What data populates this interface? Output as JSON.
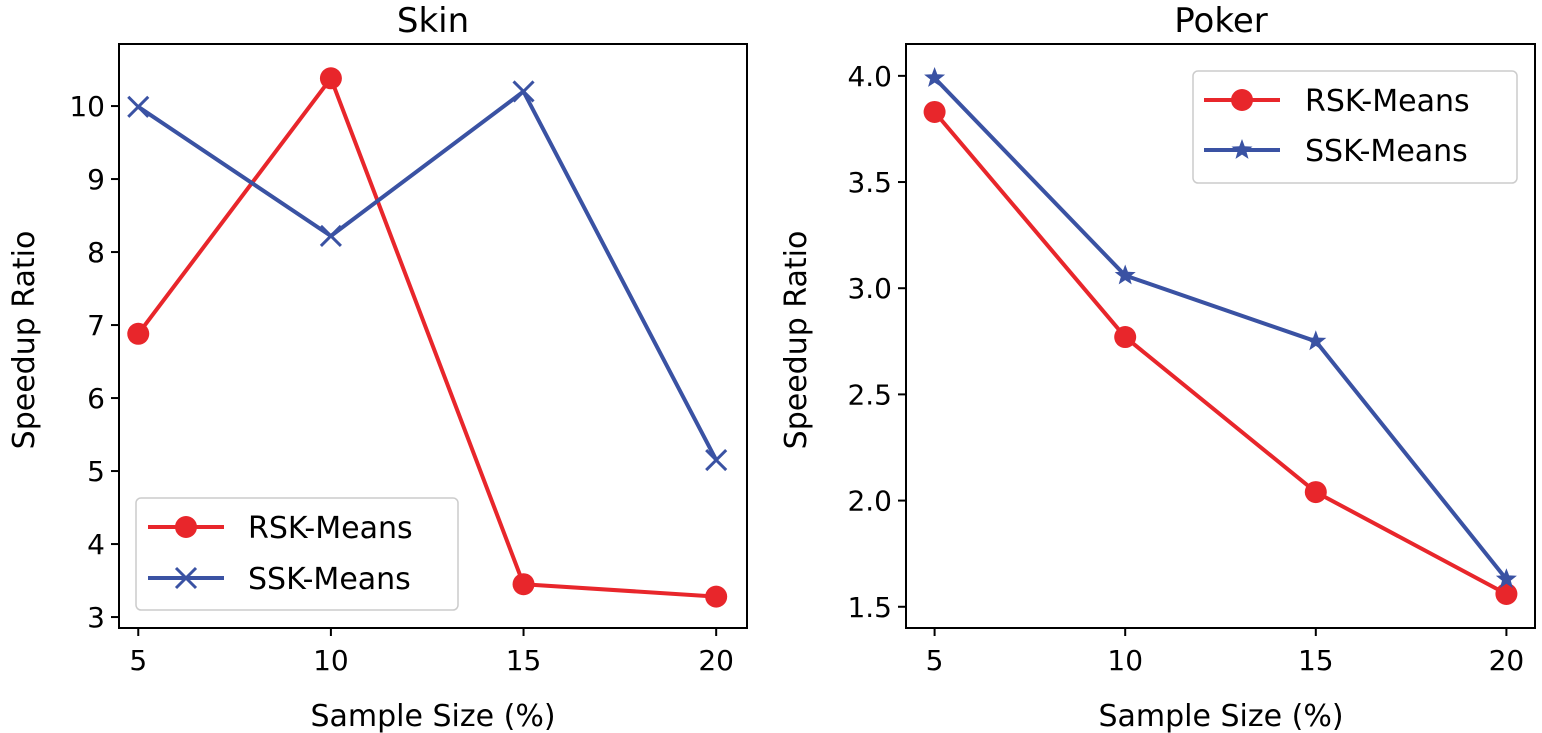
{
  "colors": {
    "rsk": "#e8262b",
    "ssk": "#3a52a3"
  },
  "chart_data": [
    {
      "type": "line",
      "title": "Skin",
      "xlabel": "Sample Size (%)",
      "ylabel": "Speedup Ratio",
      "x": [
        5,
        10,
        15,
        20
      ],
      "xticks": [
        "5",
        "10",
        "15",
        "20"
      ],
      "yticks": [
        "3",
        "4",
        "5",
        "6",
        "7",
        "8",
        "9",
        "10"
      ],
      "xlim": [
        4.5,
        20.8
      ],
      "ylim": [
        2.85,
        10.85
      ],
      "legend_position": "lower-left",
      "grid": false,
      "series": [
        {
          "name": "RSK-Means",
          "marker": "circle",
          "values": [
            6.88,
            10.38,
            3.45,
            3.28
          ]
        },
        {
          "name": "SSK-Means",
          "marker": "x",
          "values": [
            9.99,
            8.22,
            10.2,
            5.15
          ]
        }
      ]
    },
    {
      "type": "line",
      "title": "Poker",
      "xlabel": "Sample Size (%)",
      "ylabel": "Speedup Ratio",
      "x": [
        5,
        10,
        15,
        20
      ],
      "xticks": [
        "5",
        "10",
        "15",
        "20"
      ],
      "yticks": [
        "1.5",
        "2.0",
        "2.5",
        "3.0",
        "3.5",
        "4.0"
      ],
      "xlim": [
        4.25,
        20.75
      ],
      "ylim": [
        1.4,
        4.15
      ],
      "legend_position": "upper-right",
      "grid": false,
      "series": [
        {
          "name": "RSK-Means",
          "marker": "circle",
          "values": [
            3.83,
            2.77,
            2.04,
            1.56
          ]
        },
        {
          "name": "SSK-Means",
          "marker": "star",
          "values": [
            3.99,
            3.06,
            2.75,
            1.63
          ]
        }
      ]
    }
  ]
}
